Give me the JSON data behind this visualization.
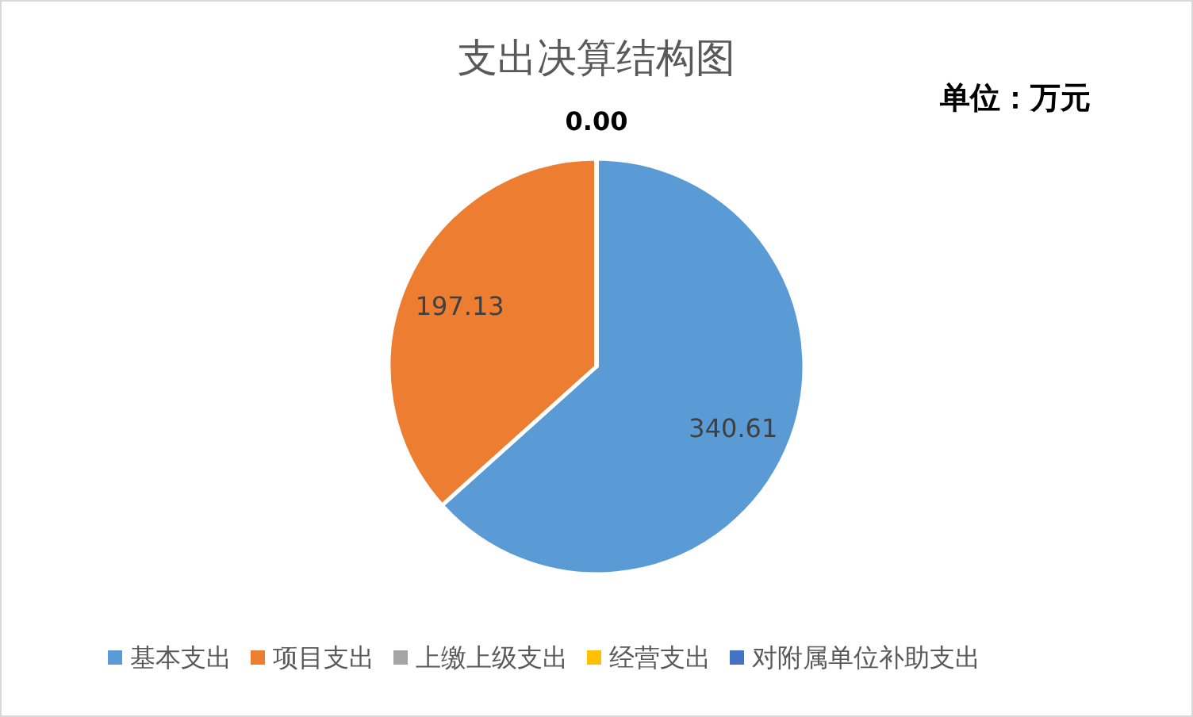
{
  "chart_data": {
    "type": "pie",
    "title": "支出决算结构图",
    "annotations": [
      "单位：万元"
    ],
    "categories": [
      "基本支出",
      "项目支出",
      "上缴上级支出",
      "经营支出",
      "对附属单位补助支出"
    ],
    "values": [
      340.61,
      197.13,
      0,
      0,
      0
    ],
    "colors": [
      "#5b9bd5",
      "#ed7d31",
      "#a5a5a5",
      "#ffc000",
      "#4472c4"
    ],
    "value_labels": [
      "340.61",
      "197.13",
      "0.00",
      null,
      null
    ],
    "legend": "bottom"
  }
}
